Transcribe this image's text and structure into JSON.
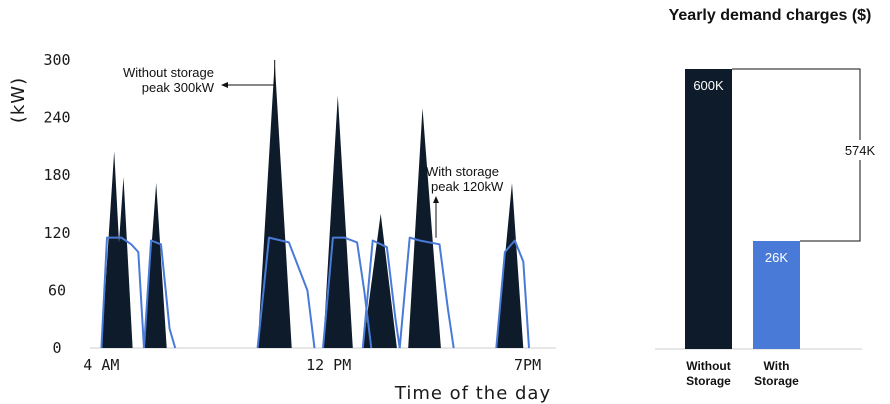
{
  "chart_data": [
    {
      "type": "area",
      "xlabel": "Time of the day",
      "ylabel": "(kW)",
      "ylim": [
        0,
        300
      ],
      "yticks": [
        "0",
        "60",
        "120",
        "180",
        "240",
        "300"
      ],
      "xticks": [
        {
          "label": "4 AM",
          "value": 4
        },
        {
          "label": "12 PM",
          "value": 12
        },
        {
          "label": "7PM",
          "value": 19
        }
      ],
      "xlim": [
        3.6,
        20.0
      ],
      "series": [
        {
          "name": "Without storage",
          "style": "filled-area",
          "color": "#0d1b2a",
          "points": [
            [
              4.0,
              0
            ],
            [
              4.45,
              205
            ],
            [
              4.62,
              110
            ],
            [
              4.78,
              178
            ],
            [
              5.1,
              0
            ],
            [
              5.5,
              0
            ],
            [
              5.93,
              172
            ],
            [
              6.3,
              0
            ],
            [
              9.5,
              0
            ],
            [
              10.1,
              298
            ],
            [
              10.7,
              0
            ],
            [
              11.8,
              0
            ],
            [
              12.32,
              263
            ],
            [
              12.85,
              0
            ],
            [
              13.2,
              0
            ],
            [
              13.83,
              140
            ],
            [
              14.4,
              0
            ],
            [
              14.8,
              0
            ],
            [
              15.3,
              250
            ],
            [
              15.95,
              0
            ],
            [
              17.9,
              0
            ],
            [
              18.45,
              172
            ],
            [
              18.85,
              0
            ]
          ]
        },
        {
          "name": "With storage",
          "style": "line",
          "color": "#4a7ad8",
          "segments": [
            [
              [
                4.0,
                0
              ],
              [
                4.2,
                115
              ],
              [
                4.7,
                115
              ],
              [
                5.05,
                108
              ],
              [
                5.3,
                100
              ],
              [
                5.5,
                0
              ]
            ],
            [
              [
                5.5,
                0
              ],
              [
                5.75,
                112
              ],
              [
                6.1,
                108
              ],
              [
                6.4,
                20
              ],
              [
                6.6,
                0
              ]
            ],
            [
              [
                9.5,
                0
              ],
              [
                9.9,
                115
              ],
              [
                10.6,
                110
              ],
              [
                11.25,
                60
              ],
              [
                11.5,
                0
              ]
            ],
            [
              [
                11.8,
                0
              ],
              [
                12.15,
                115
              ],
              [
                12.55,
                115
              ],
              [
                13.0,
                110
              ],
              [
                13.25,
                60
              ],
              [
                13.5,
                0
              ]
            ],
            [
              [
                13.2,
                0
              ],
              [
                13.55,
                112
              ],
              [
                14.05,
                105
              ],
              [
                14.35,
                30
              ],
              [
                14.5,
                0
              ]
            ],
            [
              [
                14.5,
                0
              ],
              [
                14.85,
                115
              ],
              [
                15.2,
                112
              ],
              [
                15.9,
                108
              ],
              [
                16.2,
                40
              ],
              [
                16.4,
                0
              ]
            ],
            [
              [
                17.9,
                0
              ],
              [
                18.2,
                100
              ],
              [
                18.55,
                112
              ],
              [
                18.85,
                90
              ],
              [
                19.05,
                0
              ]
            ]
          ]
        }
      ],
      "annotations": [
        {
          "lines": [
            "Without storage",
            "peak 300kW"
          ],
          "target_x": 10.1,
          "target_y": 300
        },
        {
          "lines": [
            "With storage",
            "peak 120kW"
          ],
          "target_x": 15.95,
          "target_y": 120
        }
      ]
    },
    {
      "type": "bar",
      "title": "Yearly demand charges ($)",
      "categories": [
        [
          "Without",
          "Storage"
        ],
        [
          "With",
          "Storage"
        ]
      ],
      "values": [
        600,
        26
      ],
      "value_labels": [
        "600K",
        "26K"
      ],
      "colors": [
        "#0d1b2a",
        "#4a7ad8"
      ],
      "difference_label": "574K"
    }
  ]
}
